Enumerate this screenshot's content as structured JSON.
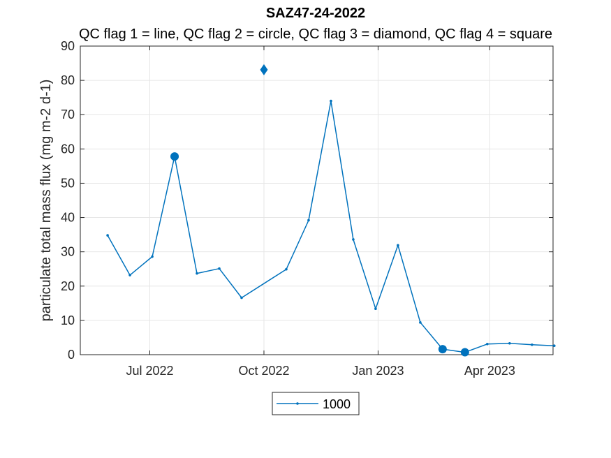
{
  "chart_data": {
    "type": "line",
    "title": "SAZ47-24-2022",
    "subtitle": "QC flag 1 = line, QC flag 2 = circle, QC flag 3 = diamond, QC flag 4 = square",
    "xlabel": "",
    "ylabel": "particulate total mass flux (mg m-2 d-1)",
    "ylim": [
      0,
      90
    ],
    "xlim": [
      "2022-05-06",
      "2023-05-22"
    ],
    "grid": true,
    "legend_position": "bottom-center",
    "yticks": [
      0,
      10,
      20,
      30,
      40,
      50,
      60,
      70,
      80,
      90
    ],
    "xticks": [
      {
        "date": "2022-07-01",
        "label": "Jul 2022"
      },
      {
        "date": "2022-10-01",
        "label": "Oct 2022"
      },
      {
        "date": "2023-01-01",
        "label": "Jan 2023"
      },
      {
        "date": "2023-04-01",
        "label": "Apr 2023"
      }
    ],
    "series": [
      {
        "name": "1000",
        "color": "#0072BD",
        "points": [
          {
            "x": "2022-05-28",
            "y": 34.8,
            "qc": 1
          },
          {
            "x": "2022-06-15",
            "y": 23.2,
            "qc": 1
          },
          {
            "x": "2022-07-03",
            "y": 28.6,
            "qc": 1
          },
          {
            "x": "2022-07-21",
            "y": 57.8,
            "qc": 2
          },
          {
            "x": "2022-08-08",
            "y": 23.7,
            "qc": 1
          },
          {
            "x": "2022-08-26",
            "y": 25.1,
            "qc": 1
          },
          {
            "x": "2022-09-13",
            "y": 16.6,
            "qc": 1
          },
          {
            "x": "2022-10-19",
            "y": 24.9,
            "qc": 1
          },
          {
            "x": "2022-11-06",
            "y": 39.2,
            "qc": 1
          },
          {
            "x": "2022-11-24",
            "y": 74.0,
            "qc": 1
          },
          {
            "x": "2022-12-12",
            "y": 33.6,
            "qc": 1
          },
          {
            "x": "2022-12-30",
            "y": 13.4,
            "qc": 1
          },
          {
            "x": "2023-01-17",
            "y": 31.9,
            "qc": 1
          },
          {
            "x": "2023-02-04",
            "y": 9.4,
            "qc": 1
          },
          {
            "x": "2023-02-22",
            "y": 1.6,
            "qc": 2
          },
          {
            "x": "2023-03-12",
            "y": 0.7,
            "qc": 2
          },
          {
            "x": "2023-03-30",
            "y": 3.1,
            "qc": 1
          },
          {
            "x": "2023-04-17",
            "y": 3.3,
            "qc": 1
          },
          {
            "x": "2023-05-05",
            "y": 2.9,
            "qc": 1
          },
          {
            "x": "2023-05-23",
            "y": 2.6,
            "qc": 1
          }
        ],
        "isolated_points": [
          {
            "x": "2022-10-01",
            "y": 83.1,
            "qc": 3
          }
        ]
      }
    ]
  }
}
